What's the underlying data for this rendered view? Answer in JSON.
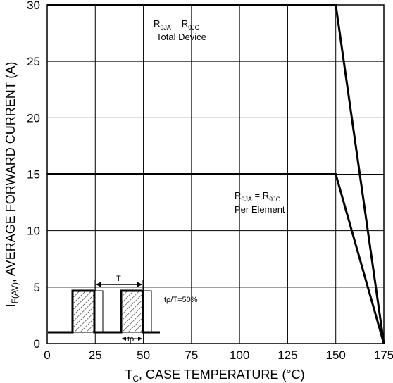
{
  "chart_data": {
    "type": "line",
    "x_label_main": "T",
    "x_label_sub": "C",
    "x_label_rest": ", CASE TEMPERATURE (°C)",
    "y_label_main": "I",
    "y_label_sub": "F(AV)",
    "y_label_rest": ", AVERAGE FORWARD CURRENT (A)",
    "xlim": [
      0,
      175
    ],
    "ylim": [
      0,
      30
    ],
    "x_ticks": [
      0,
      25,
      50,
      75,
      100,
      125,
      150,
      175
    ],
    "y_ticks": [
      0,
      5,
      10,
      15,
      20,
      25,
      30
    ],
    "grid": true,
    "series": [
      {
        "x": [
          0,
          150,
          175
        ],
        "y": [
          30,
          30,
          0
        ]
      },
      {
        "x": [
          0,
          150,
          175
        ],
        "y": [
          15,
          15,
          0
        ]
      }
    ],
    "annotations": {
      "total": {
        "r1": "R",
        "s1": "θJA",
        "eq": " = ",
        "r2": "R",
        "s2": "θJC",
        "line2": "Total Device"
      },
      "element": {
        "r1": "R",
        "s1": "θJA",
        "eq": " = ",
        "r2": "R",
        "s2": "θJC",
        "line2": "Per Element"
      },
      "inset": {
        "period": "T",
        "pulse": "tρ",
        "duty": "tρ/T=50%"
      }
    }
  }
}
